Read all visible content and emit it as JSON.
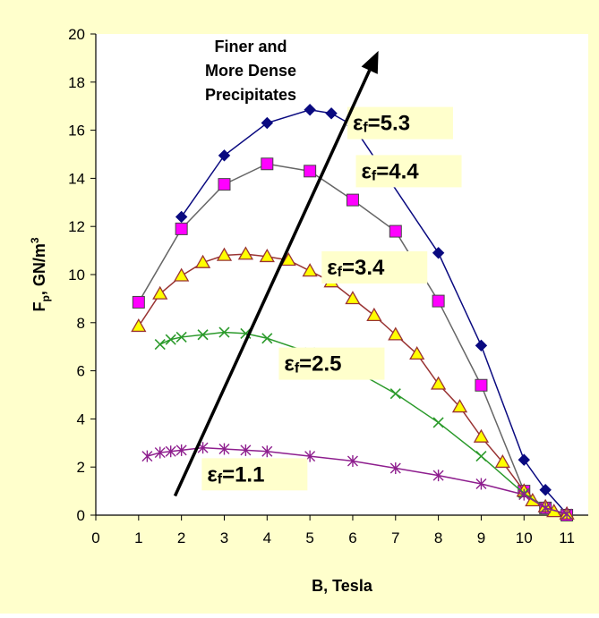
{
  "colors": {
    "background": "#FFFFCC",
    "plot_area": "#FFFFFF",
    "axis": "#000000",
    "label_box": "#FFFFCC"
  },
  "chart_data": {
    "type": "line",
    "xlabel": "B, Tesla",
    "ylabel": {
      "main": "F",
      "sub": "p",
      "mid": ", GN/m",
      "sup": "3"
    },
    "xlim": [
      0,
      11.5
    ],
    "ylim": [
      0,
      20
    ],
    "xticks": [
      "0",
      "1",
      "2",
      "3",
      "4",
      "5",
      "6",
      "7",
      "8",
      "9",
      "10",
      "11"
    ],
    "yticks": [
      "0",
      "2",
      "4",
      "6",
      "8",
      "10",
      "12",
      "14",
      "16",
      "18",
      "20"
    ],
    "grid": false,
    "legend": "none",
    "annotation": {
      "lines": [
        "Finer and",
        "More Dense",
        "Precipitates"
      ],
      "arrow_from": [
        1.85,
        0.8
      ],
      "arrow_to": [
        6.6,
        19.3
      ]
    },
    "series": [
      {
        "label_symbol": "ε",
        "label_sub": "f",
        "label_value": "=5.3",
        "label_pos": [
          6.0,
          16.0
        ],
        "color": "#0A0A80",
        "marker": "diamond",
        "marker_fill": "#0A0A80",
        "x": [
          2,
          3,
          4,
          5,
          5.5,
          6,
          8,
          9,
          10,
          10.5,
          11
        ],
        "y": [
          12.4,
          14.95,
          16.3,
          16.85,
          16.7,
          16.2,
          10.9,
          7.05,
          2.3,
          1.05,
          0.05
        ]
      },
      {
        "label_symbol": "ε",
        "label_sub": "f",
        "label_value": "=4.4",
        "label_pos": [
          6.2,
          14.0
        ],
        "color": "#666666",
        "marker": "square",
        "marker_fill": "#FF00FF",
        "x": [
          1,
          2,
          3,
          4,
          5,
          6,
          7,
          8,
          9,
          10,
          10.5,
          11
        ],
        "y": [
          8.85,
          11.9,
          13.75,
          14.6,
          14.3,
          13.1,
          11.8,
          8.9,
          5.4,
          1.0,
          0.3,
          0.0
        ]
      },
      {
        "label_symbol": "ε",
        "label_sub": "f",
        "label_value": "=3.4",
        "label_pos": [
          5.4,
          10.0
        ],
        "color": "#993333",
        "marker": "triangle",
        "marker_fill": "#FFFF00",
        "x": [
          1,
          1.5,
          2,
          2.5,
          3,
          3.5,
          4,
          4.5,
          5,
          5.5,
          6,
          6.5,
          7,
          7.5,
          8,
          8.5,
          9,
          9.5,
          10,
          10.2,
          10.5,
          10.7,
          11
        ],
        "y": [
          7.85,
          9.2,
          9.95,
          10.5,
          10.8,
          10.85,
          10.75,
          10.6,
          10.15,
          9.7,
          9.0,
          8.3,
          7.5,
          6.7,
          5.45,
          4.5,
          3.25,
          2.2,
          1.0,
          0.6,
          0.35,
          0.15,
          0.05
        ]
      },
      {
        "label_symbol": "ε",
        "label_sub": "f",
        "label_value": "=2.5",
        "label_pos": [
          4.4,
          6.0
        ],
        "color": "#2B9A2B",
        "marker": "x",
        "marker_fill": "#2B9A2B",
        "x": [
          1.5,
          1.75,
          2,
          2.5,
          3,
          3.5,
          4,
          5,
          6,
          7,
          8,
          9,
          10,
          10.5,
          11
        ],
        "y": [
          7.1,
          7.3,
          7.4,
          7.5,
          7.6,
          7.55,
          7.35,
          6.75,
          6.05,
          5.05,
          3.85,
          2.45,
          0.9,
          0.3,
          0.05
        ]
      },
      {
        "label_symbol": "ε",
        "label_sub": "f",
        "label_value": "=1.1",
        "label_pos": [
          2.6,
          1.4
        ],
        "color": "#8E1E8E",
        "marker": "star",
        "marker_fill": "#8E1E8E",
        "x": [
          1.2,
          1.5,
          1.75,
          2,
          2.5,
          3,
          3.5,
          4,
          5,
          6,
          7,
          8,
          9,
          10,
          10.5,
          11
        ],
        "y": [
          2.45,
          2.6,
          2.65,
          2.7,
          2.8,
          2.75,
          2.7,
          2.65,
          2.45,
          2.25,
          1.95,
          1.65,
          1.3,
          0.85,
          0.3,
          0.05
        ]
      }
    ]
  }
}
